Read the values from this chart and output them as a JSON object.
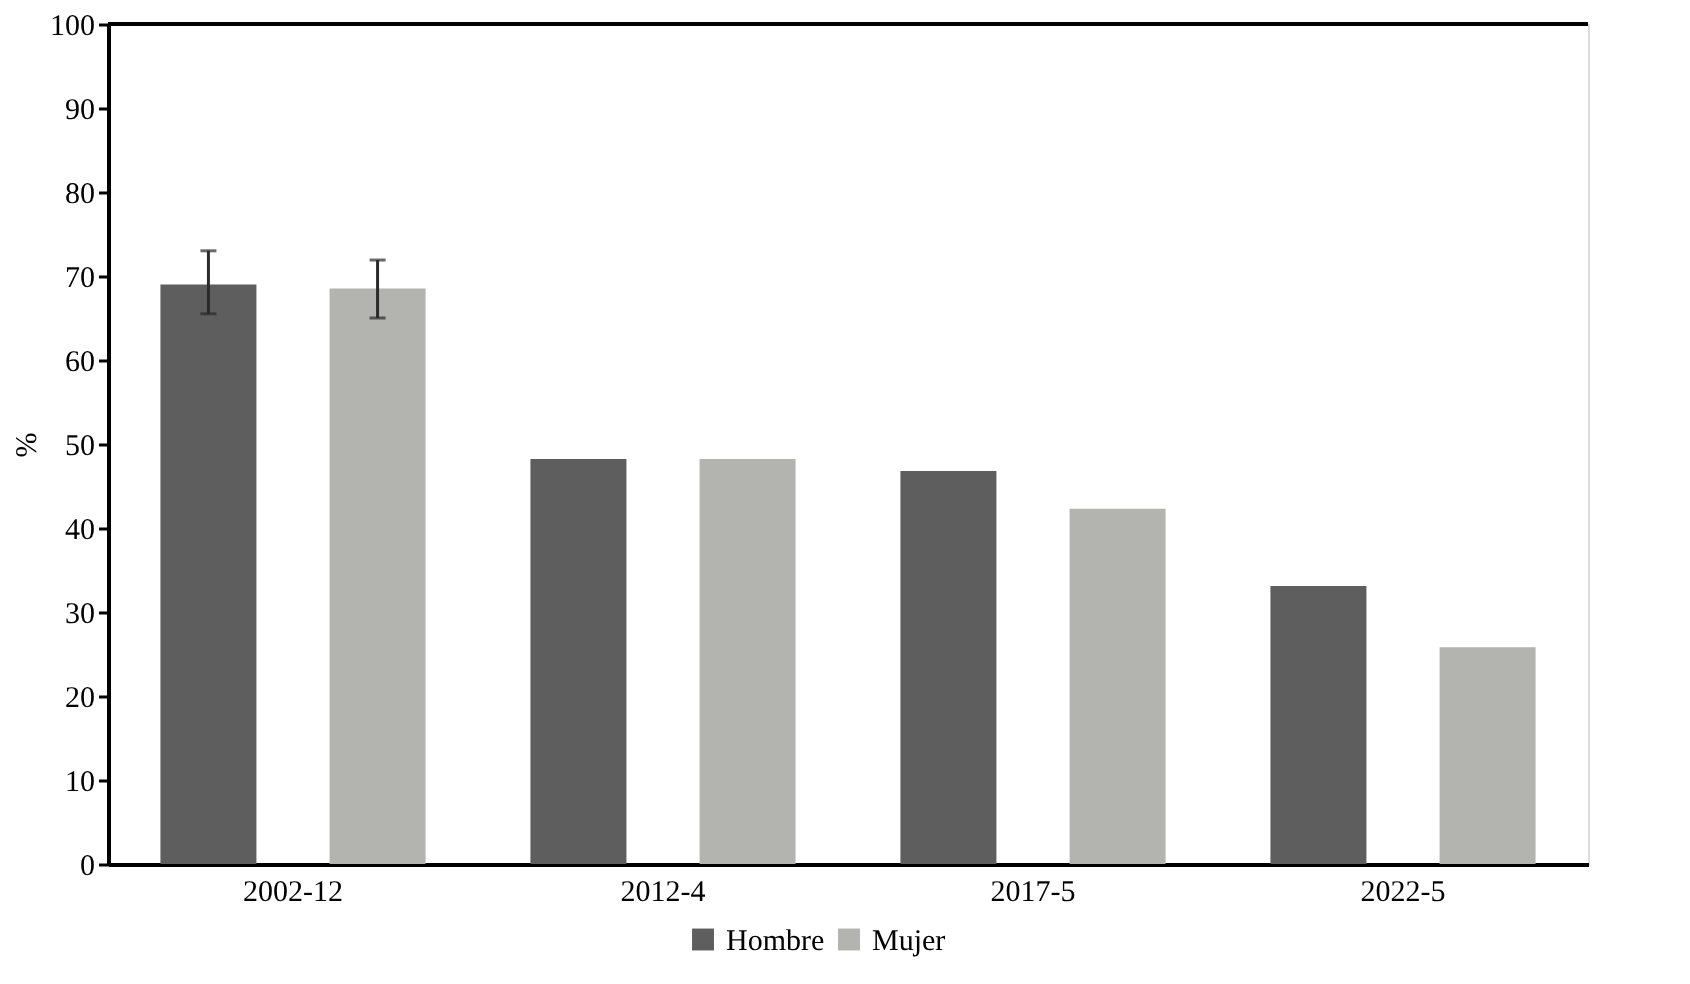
{
  "chart_data": {
    "type": "bar",
    "ylabel": "%",
    "categories": [
      "2002-12",
      "2012-4",
      "2017-5",
      "2022-5"
    ],
    "series": [
      {
        "name": "Hombre",
        "color": "#5e5e5e",
        "values": [
          69,
          48.2,
          46.8,
          33.1
        ],
        "errors": [
          [
            65.5,
            73
          ],
          null,
          null,
          null
        ]
      },
      {
        "name": "Mujer",
        "color": "#b3b3af",
        "values": [
          68.5,
          48.2,
          42.3,
          25.8
        ],
        "errors": [
          [
            65,
            71.9
          ],
          null,
          null,
          null
        ]
      }
    ],
    "ylim": [
      0,
      100
    ],
    "yticks": [
      0,
      10,
      20,
      30,
      40,
      50,
      60,
      70,
      80,
      90,
      100
    ],
    "grid": false,
    "legend": "bottom"
  }
}
